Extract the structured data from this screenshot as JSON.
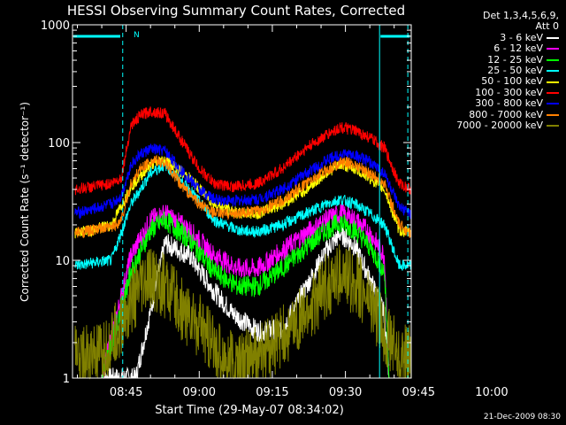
{
  "chart_data": {
    "type": "line",
    "title": "HESSI Observing Summary Count Rates, Corrected",
    "xlabel": "Start Time (29-May-07 08:34:02)",
    "ylabel": "Corrected Count Rate (s⁻¹ detector⁻¹)",
    "yscale": "log",
    "ylim": [
      1,
      1000
    ],
    "xlim_min": [
      34.0,
      103.5
    ],
    "x_tick_labels": [
      "08:45",
      "09:00",
      "09:15",
      "09:30",
      "09:45",
      "10:00"
    ],
    "y_tick_labels": [
      "1",
      "10",
      "100",
      "1000"
    ],
    "legend_header": [
      "Det 1,3,4,5,6,9,",
      "Att 0"
    ],
    "series": [
      {
        "name": "3 - 6 keV",
        "color": "#ffffff",
        "x": [
          40,
          47,
          53,
          58,
          63,
          67,
          72,
          77,
          82,
          86,
          89,
          92,
          95,
          98,
          99
        ],
        "y": [
          1,
          1,
          14,
          11,
          5.5,
          3.5,
          2.5,
          2.6,
          6,
          12,
          17,
          13,
          7,
          3.5,
          1
        ]
      },
      {
        "name": "6 - 12 keV",
        "color": "#ff00ff",
        "x": [
          40,
          46,
          50,
          53,
          58,
          63,
          68,
          72,
          77,
          82,
          86,
          89,
          92,
          95,
          98,
          99
        ],
        "y": [
          1,
          11,
          22,
          25,
          18,
          11,
          8.5,
          8.5,
          12,
          17,
          22,
          25,
          22,
          17,
          11,
          1
        ]
      },
      {
        "name": "12 - 25 keV",
        "color": "#00ff00",
        "x": [
          40,
          46,
          50,
          53,
          58,
          63,
          68,
          72,
          77,
          82,
          86,
          89,
          92,
          95,
          98,
          99
        ],
        "y": [
          1,
          8,
          18,
          22,
          15,
          8,
          6,
          6,
          8.5,
          13,
          18,
          21,
          18,
          13,
          8,
          1
        ]
      },
      {
        "name": "25 - 50 keV",
        "color": "#00ffff",
        "x": [
          34.5,
          38,
          42,
          46,
          50,
          53,
          58,
          63,
          68,
          72,
          77,
          82,
          86,
          89,
          92,
          95,
          98,
          101,
          103.5
        ],
        "y": [
          9,
          9.5,
          10,
          30,
          55,
          65,
          40,
          22,
          18,
          17.5,
          20,
          25,
          30,
          33,
          30,
          25,
          20,
          9,
          9
        ]
      },
      {
        "name": "50 - 100 keV",
        "color": "#ffff00",
        "x": [
          34.5,
          38,
          42,
          46,
          50,
          53,
          58,
          63,
          68,
          72,
          77,
          82,
          86,
          89,
          92,
          95,
          98,
          101,
          103.5
        ],
        "y": [
          17,
          18,
          20,
          42,
          65,
          72,
          50,
          30,
          25,
          25,
          30,
          40,
          55,
          65,
          60,
          50,
          40,
          18,
          17
        ]
      },
      {
        "name": "100 - 300 keV",
        "color": "#ff0000",
        "x": [
          34.5,
          38,
          42,
          44,
          46,
          48,
          50,
          53,
          56,
          60,
          63,
          67,
          72,
          77,
          82,
          86,
          89,
          92,
          95,
          98,
          101,
          103.5
        ],
        "y": [
          40,
          42,
          45,
          50,
          140,
          170,
          185,
          175,
          110,
          60,
          45,
          42,
          45,
          60,
          90,
          115,
          135,
          125,
          110,
          90,
          45,
          40
        ]
      },
      {
        "name": "300 - 800 keV",
        "color": "#0000ff",
        "x": [
          34.5,
          38,
          42,
          44,
          46,
          48,
          50,
          53,
          56,
          60,
          63,
          67,
          72,
          77,
          82,
          86,
          89,
          92,
          95,
          98,
          101,
          103.5
        ],
        "y": [
          25,
          27,
          30,
          35,
          65,
          80,
          88,
          85,
          60,
          40,
          33,
          32,
          33,
          40,
          55,
          70,
          80,
          78,
          68,
          55,
          28,
          25
        ]
      },
      {
        "name": "800 - 7000 keV",
        "color": "#ff8000",
        "x": [
          34.5,
          38,
          42,
          44,
          46,
          48,
          50,
          53,
          56,
          60,
          63,
          67,
          72,
          77,
          82,
          86,
          89,
          92,
          95,
          98,
          101,
          103.5
        ],
        "y": [
          17,
          18,
          19,
          22,
          45,
          60,
          70,
          68,
          45,
          30,
          25,
          25,
          26,
          32,
          45,
          58,
          68,
          65,
          55,
          45,
          20,
          17
        ]
      },
      {
        "name": "7000 - 20000 keV",
        "color": "#808000",
        "x": [
          34.5,
          40,
          44,
          46,
          48,
          50,
          53,
          56,
          60,
          63,
          67,
          72,
          77,
          82,
          86,
          89,
          92,
          95,
          98,
          101,
          103.5
        ],
        "y": [
          1.5,
          1.5,
          2.8,
          4.5,
          5.5,
          7,
          6,
          4,
          2.8,
          1.8,
          1.3,
          1.5,
          2.2,
          3.5,
          6,
          7.5,
          6.5,
          4.5,
          2.5,
          1.5,
          1.5
        ]
      }
    ]
  },
  "flag_marker": "N",
  "timestamp": "21-Dec-2009 08:30"
}
